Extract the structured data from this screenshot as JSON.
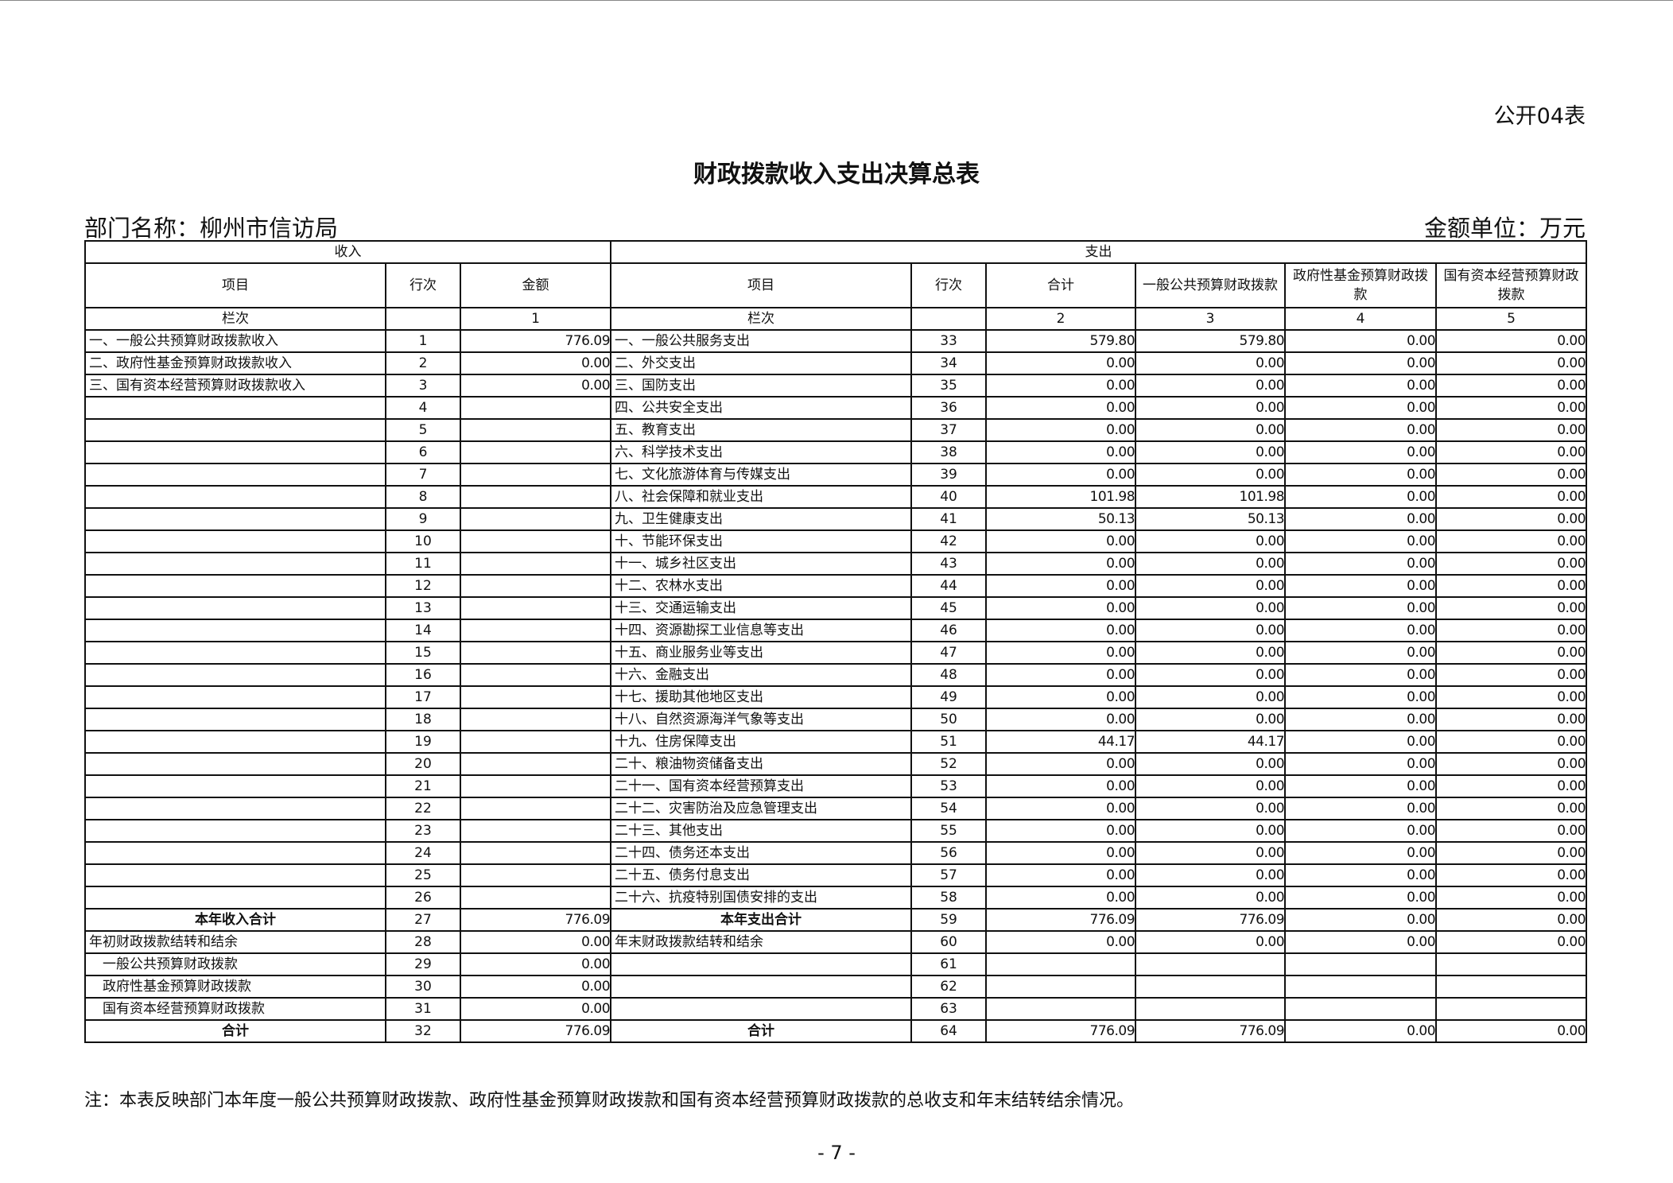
{
  "form_id": "公开04表",
  "title": "财政拨款收入支出决算总表",
  "department": "部门名称：柳州市信访局",
  "unit": "金额单位：万元",
  "header": {
    "income": "收入",
    "expense": "支出",
    "cols": [
      "项目",
      "行次",
      "金额",
      "项目",
      "行次",
      "合计",
      "一般公共预算财政拨款",
      "政府性基金预算财政拨款",
      "国有资本经营预算财政拨款"
    ],
    "col_index": [
      "栏次",
      "",
      "1",
      "栏次",
      "",
      "2",
      "3",
      "4",
      "5"
    ]
  },
  "rows": [
    [
      "一、一般公共预算财政拨款收入",
      "1",
      "776.09",
      "一、一般公共服务支出",
      "33",
      "579.80",
      "579.80",
      "0.00",
      "0.00"
    ],
    [
      "二、政府性基金预算财政拨款收入",
      "2",
      "0.00",
      "二、外交支出",
      "34",
      "0.00",
      "0.00",
      "0.00",
      "0.00"
    ],
    [
      "三、国有资本经营预算财政拨款收入",
      "3",
      "0.00",
      "三、国防支出",
      "35",
      "0.00",
      "0.00",
      "0.00",
      "0.00"
    ],
    [
      "",
      "4",
      "",
      "四、公共安全支出",
      "36",
      "0.00",
      "0.00",
      "0.00",
      "0.00"
    ],
    [
      "",
      "5",
      "",
      "五、教育支出",
      "37",
      "0.00",
      "0.00",
      "0.00",
      "0.00"
    ],
    [
      "",
      "6",
      "",
      "六、科学技术支出",
      "38",
      "0.00",
      "0.00",
      "0.00",
      "0.00"
    ],
    [
      "",
      "7",
      "",
      "七、文化旅游体育与传媒支出",
      "39",
      "0.00",
      "0.00",
      "0.00",
      "0.00"
    ],
    [
      "",
      "8",
      "",
      "八、社会保障和就业支出",
      "40",
      "101.98",
      "101.98",
      "0.00",
      "0.00"
    ],
    [
      "",
      "9",
      "",
      "九、卫生健康支出",
      "41",
      "50.13",
      "50.13",
      "0.00",
      "0.00"
    ],
    [
      "",
      "10",
      "",
      "十、节能环保支出",
      "42",
      "0.00",
      "0.00",
      "0.00",
      "0.00"
    ],
    [
      "",
      "11",
      "",
      "十一、城乡社区支出",
      "43",
      "0.00",
      "0.00",
      "0.00",
      "0.00"
    ],
    [
      "",
      "12",
      "",
      "十二、农林水支出",
      "44",
      "0.00",
      "0.00",
      "0.00",
      "0.00"
    ],
    [
      "",
      "13",
      "",
      "十三、交通运输支出",
      "45",
      "0.00",
      "0.00",
      "0.00",
      "0.00"
    ],
    [
      "",
      "14",
      "",
      "十四、资源勘探工业信息等支出",
      "46",
      "0.00",
      "0.00",
      "0.00",
      "0.00"
    ],
    [
      "",
      "15",
      "",
      "十五、商业服务业等支出",
      "47",
      "0.00",
      "0.00",
      "0.00",
      "0.00"
    ],
    [
      "",
      "16",
      "",
      "十六、金融支出",
      "48",
      "0.00",
      "0.00",
      "0.00",
      "0.00"
    ],
    [
      "",
      "17",
      "",
      "十七、援助其他地区支出",
      "49",
      "0.00",
      "0.00",
      "0.00",
      "0.00"
    ],
    [
      "",
      "18",
      "",
      "十八、自然资源海洋气象等支出",
      "50",
      "0.00",
      "0.00",
      "0.00",
      "0.00"
    ],
    [
      "",
      "19",
      "",
      "十九、住房保障支出",
      "51",
      "44.17",
      "44.17",
      "0.00",
      "0.00"
    ],
    [
      "",
      "20",
      "",
      "二十、粮油物资储备支出",
      "52",
      "0.00",
      "0.00",
      "0.00",
      "0.00"
    ],
    [
      "",
      "21",
      "",
      "二十一、国有资本经营预算支出",
      "53",
      "0.00",
      "0.00",
      "0.00",
      "0.00"
    ],
    [
      "",
      "22",
      "",
      "二十二、灾害防治及应急管理支出",
      "54",
      "0.00",
      "0.00",
      "0.00",
      "0.00"
    ],
    [
      "",
      "23",
      "",
      "二十三、其他支出",
      "55",
      "0.00",
      "0.00",
      "0.00",
      "0.00"
    ],
    [
      "",
      "24",
      "",
      "二十四、债务还本支出",
      "56",
      "0.00",
      "0.00",
      "0.00",
      "0.00"
    ],
    [
      "",
      "25",
      "",
      "二十五、债务付息支出",
      "57",
      "0.00",
      "0.00",
      "0.00",
      "0.00"
    ],
    [
      "",
      "26",
      "",
      "二十六、抗疫特别国债安排的支出",
      "58",
      "0.00",
      "0.00",
      "0.00",
      "0.00"
    ],
    [
      "本年收入合计",
      "27",
      "776.09",
      "本年支出合计",
      "59",
      "776.09",
      "776.09",
      "0.00",
      "0.00"
    ],
    [
      "年初财政拨款结转和结余",
      "28",
      "0.00",
      "年末财政拨款结转和结余",
      "60",
      "0.00",
      "0.00",
      "0.00",
      "0.00"
    ],
    [
      "　一般公共预算财政拨款",
      "29",
      "0.00",
      "",
      "61",
      "",
      "",
      "",
      ""
    ],
    [
      "　政府性基金预算财政拨款",
      "30",
      "0.00",
      "",
      "62",
      "",
      "",
      "",
      ""
    ],
    [
      "　国有资本经营预算财政拨款",
      "31",
      "0.00",
      "",
      "63",
      "",
      "",
      "",
      ""
    ],
    [
      "合计",
      "32",
      "776.09",
      "合计",
      "64",
      "776.09",
      "776.09",
      "0.00",
      "0.00"
    ]
  ],
  "bold_rows": [
    26,
    31
  ],
  "note": "注：本表反映部门本年度一般公共预算财政拨款、政府性基金预算财政拨款和国有资本经营预算财政拨款的总收支和年末结转结余情况。",
  "page_number": "- 7 -"
}
